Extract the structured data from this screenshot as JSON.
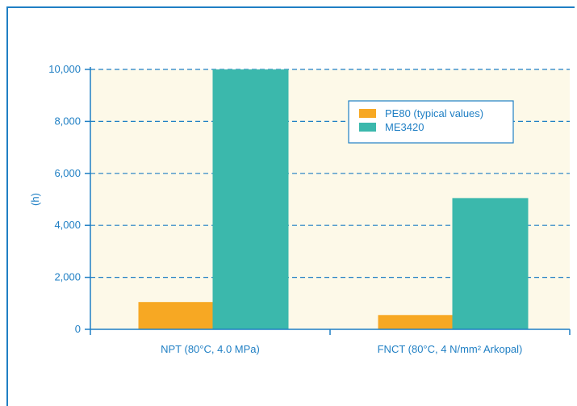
{
  "chart_data": {
    "type": "bar",
    "categories": [
      "NPT (80°C, 4.0 MPa)",
      "FNCT (80°C, 4 N/mm² Arkopal)"
    ],
    "series": [
      {
        "name": "PE80 (typical values)",
        "values": [
          1050,
          550
        ],
        "color": "#f7a823"
      },
      {
        "name": "ME3420",
        "values": [
          10000,
          5050
        ],
        "color": "#3bb8ac"
      }
    ],
    "ylabel": "(h)",
    "xlabel": "",
    "ylim": [
      0,
      10000
    ],
    "yticks": [
      0,
      2000,
      4000,
      6000,
      8000,
      10000
    ],
    "ytick_labels": [
      "0",
      "2,000",
      "4,000",
      "6,000",
      "8,000",
      "10,000"
    ],
    "grid": true,
    "legend_position": "top-right",
    "colors": {
      "plot_background": "#fdf9e8",
      "axis": "#1f7fc4",
      "frame": "#1f7fc4"
    }
  }
}
